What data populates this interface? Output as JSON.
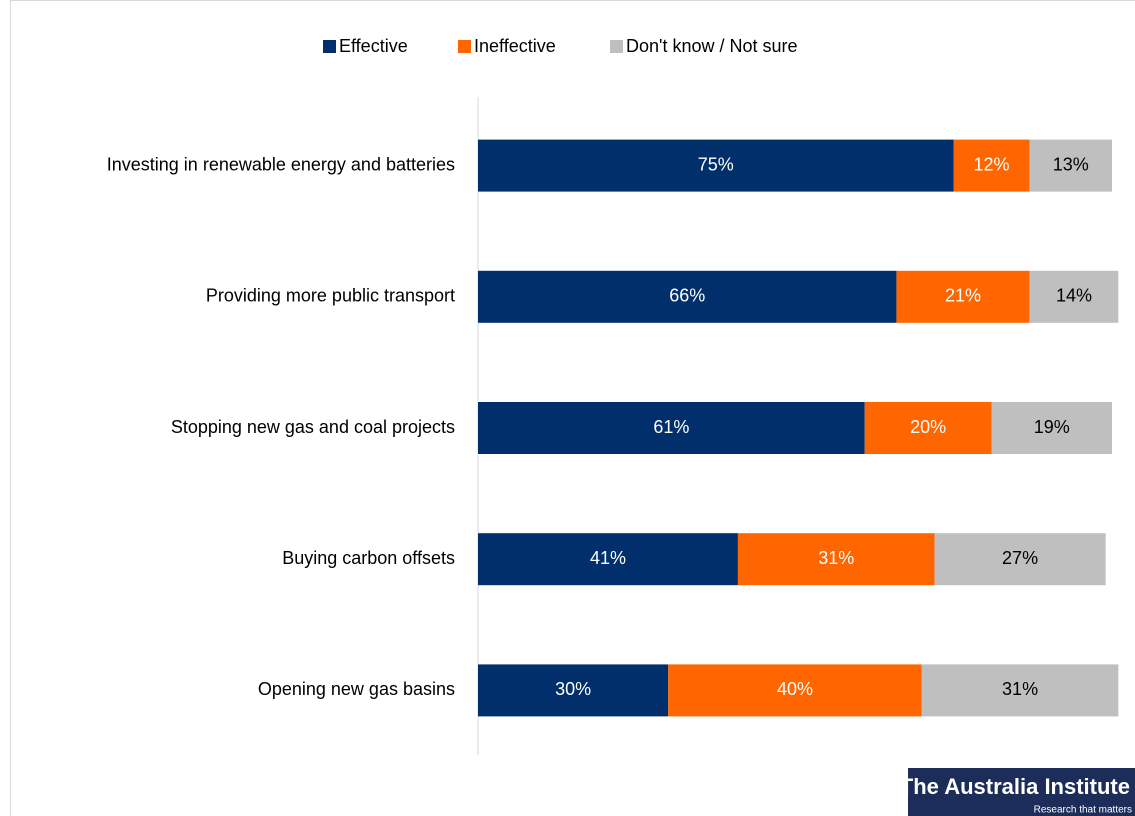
{
  "chart_data": {
    "type": "stacked_barh",
    "categories": [
      "Investing in renewable energy and batteries",
      "Providing more public transport",
      "Stopping new gas and coal projects",
      "Buying carbon offsets",
      "Opening new gas basins"
    ],
    "series": [
      {
        "name": "Effective",
        "color": "#002f6c",
        "values": [
          75,
          66,
          61,
          41,
          30
        ],
        "value_labels": [
          "75%",
          "66%",
          "61%",
          "41%",
          "30%"
        ]
      },
      {
        "name": "Ineffective",
        "color": "#ff6600",
        "values": [
          12,
          21,
          20,
          31,
          40
        ],
        "value_labels": [
          "12%",
          "21%",
          "20%",
          "31%",
          "40%"
        ]
      },
      {
        "name": "Don't know / Not sure",
        "color": "#bfbfbf",
        "values": [
          13,
          14,
          19,
          27,
          31
        ],
        "value_labels": [
          "13%",
          "14%",
          "19%",
          "27%",
          "31%"
        ]
      }
    ],
    "xlim": [
      0,
      100
    ],
    "legend": "top",
    "logo": {
      "title": "The Australia Institute",
      "tagline": "Research that matters"
    }
  }
}
